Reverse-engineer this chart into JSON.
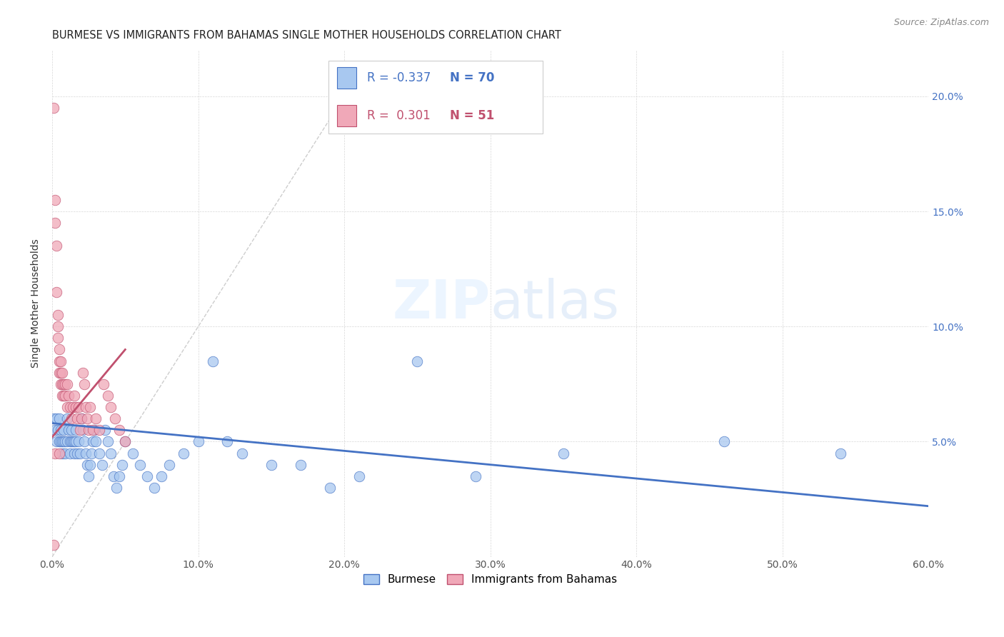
{
  "title": "BURMESE VS IMMIGRANTS FROM BAHAMAS SINGLE MOTHER HOUSEHOLDS CORRELATION CHART",
  "source": "Source: ZipAtlas.com",
  "ylabel": "Single Mother Households",
  "xlim": [
    0.0,
    0.6
  ],
  "ylim": [
    0.0,
    0.22
  ],
  "xticks": [
    0.0,
    0.1,
    0.2,
    0.3,
    0.4,
    0.5,
    0.6
  ],
  "xticklabels": [
    "0.0%",
    "10.0%",
    "20.0%",
    "30.0%",
    "40.0%",
    "50.0%",
    "60.0%"
  ],
  "yticks": [
    0.0,
    0.05,
    0.1,
    0.15,
    0.2
  ],
  "yticklabels_right": [
    "",
    "5.0%",
    "10.0%",
    "15.0%",
    "20.0%"
  ],
  "legend_R1": "-0.337",
  "legend_N1": "70",
  "legend_R2": "0.301",
  "legend_N2": "51",
  "color_blue": "#a8c8f0",
  "color_pink": "#f0a8b8",
  "color_blue_line": "#4472c4",
  "color_pink_line": "#c0506e",
  "color_diag": "#c8c8c8",
  "blue_points": [
    [
      0.001,
      0.06
    ],
    [
      0.002,
      0.055
    ],
    [
      0.003,
      0.05
    ],
    [
      0.003,
      0.06
    ],
    [
      0.004,
      0.055
    ],
    [
      0.005,
      0.05
    ],
    [
      0.005,
      0.06
    ],
    [
      0.006,
      0.05
    ],
    [
      0.006,
      0.055
    ],
    [
      0.007,
      0.05
    ],
    [
      0.007,
      0.045
    ],
    [
      0.008,
      0.05
    ],
    [
      0.008,
      0.055
    ],
    [
      0.009,
      0.05
    ],
    [
      0.009,
      0.045
    ],
    [
      0.01,
      0.06
    ],
    [
      0.01,
      0.05
    ],
    [
      0.011,
      0.055
    ],
    [
      0.012,
      0.05
    ],
    [
      0.012,
      0.045
    ],
    [
      0.013,
      0.05
    ],
    [
      0.013,
      0.055
    ],
    [
      0.014,
      0.05
    ],
    [
      0.015,
      0.045
    ],
    [
      0.015,
      0.05
    ],
    [
      0.016,
      0.05
    ],
    [
      0.016,
      0.055
    ],
    [
      0.017,
      0.045
    ],
    [
      0.018,
      0.05
    ],
    [
      0.019,
      0.045
    ],
    [
      0.02,
      0.06
    ],
    [
      0.021,
      0.055
    ],
    [
      0.022,
      0.05
    ],
    [
      0.023,
      0.045
    ],
    [
      0.024,
      0.04
    ],
    [
      0.025,
      0.035
    ],
    [
      0.026,
      0.04
    ],
    [
      0.027,
      0.045
    ],
    [
      0.028,
      0.05
    ],
    [
      0.029,
      0.055
    ],
    [
      0.03,
      0.05
    ],
    [
      0.032,
      0.045
    ],
    [
      0.034,
      0.04
    ],
    [
      0.036,
      0.055
    ],
    [
      0.038,
      0.05
    ],
    [
      0.04,
      0.045
    ],
    [
      0.042,
      0.035
    ],
    [
      0.044,
      0.03
    ],
    [
      0.046,
      0.035
    ],
    [
      0.048,
      0.04
    ],
    [
      0.05,
      0.05
    ],
    [
      0.055,
      0.045
    ],
    [
      0.06,
      0.04
    ],
    [
      0.065,
      0.035
    ],
    [
      0.07,
      0.03
    ],
    [
      0.075,
      0.035
    ],
    [
      0.08,
      0.04
    ],
    [
      0.09,
      0.045
    ],
    [
      0.1,
      0.05
    ],
    [
      0.11,
      0.085
    ],
    [
      0.12,
      0.05
    ],
    [
      0.13,
      0.045
    ],
    [
      0.15,
      0.04
    ],
    [
      0.17,
      0.04
    ],
    [
      0.19,
      0.03
    ],
    [
      0.21,
      0.035
    ],
    [
      0.25,
      0.085
    ],
    [
      0.29,
      0.035
    ],
    [
      0.35,
      0.045
    ],
    [
      0.46,
      0.05
    ],
    [
      0.54,
      0.045
    ]
  ],
  "pink_points": [
    [
      0.001,
      0.195
    ],
    [
      0.002,
      0.155
    ],
    [
      0.002,
      0.145
    ],
    [
      0.003,
      0.135
    ],
    [
      0.003,
      0.115
    ],
    [
      0.004,
      0.105
    ],
    [
      0.004,
      0.1
    ],
    [
      0.004,
      0.095
    ],
    [
      0.005,
      0.09
    ],
    [
      0.005,
      0.085
    ],
    [
      0.005,
      0.08
    ],
    [
      0.006,
      0.085
    ],
    [
      0.006,
      0.08
    ],
    [
      0.006,
      0.075
    ],
    [
      0.007,
      0.08
    ],
    [
      0.007,
      0.075
    ],
    [
      0.007,
      0.07
    ],
    [
      0.008,
      0.075
    ],
    [
      0.008,
      0.07
    ],
    [
      0.009,
      0.075
    ],
    [
      0.009,
      0.07
    ],
    [
      0.01,
      0.075
    ],
    [
      0.01,
      0.065
    ],
    [
      0.011,
      0.07
    ],
    [
      0.012,
      0.065
    ],
    [
      0.013,
      0.06
    ],
    [
      0.014,
      0.065
    ],
    [
      0.015,
      0.07
    ],
    [
      0.016,
      0.065
    ],
    [
      0.017,
      0.06
    ],
    [
      0.018,
      0.065
    ],
    [
      0.019,
      0.055
    ],
    [
      0.02,
      0.06
    ],
    [
      0.021,
      0.08
    ],
    [
      0.022,
      0.075
    ],
    [
      0.023,
      0.065
    ],
    [
      0.024,
      0.06
    ],
    [
      0.025,
      0.055
    ],
    [
      0.026,
      0.065
    ],
    [
      0.028,
      0.055
    ],
    [
      0.03,
      0.06
    ],
    [
      0.032,
      0.055
    ],
    [
      0.035,
      0.075
    ],
    [
      0.038,
      0.07
    ],
    [
      0.04,
      0.065
    ],
    [
      0.043,
      0.06
    ],
    [
      0.046,
      0.055
    ],
    [
      0.05,
      0.05
    ],
    [
      0.001,
      0.005
    ],
    [
      0.002,
      0.045
    ],
    [
      0.005,
      0.045
    ]
  ],
  "blue_line": [
    [
      0.0,
      0.058
    ],
    [
      0.6,
      0.022
    ]
  ],
  "pink_line": [
    [
      0.0,
      0.052
    ],
    [
      0.05,
      0.09
    ]
  ],
  "diag_line": [
    [
      0.0,
      0.0
    ],
    [
      0.2,
      0.2
    ]
  ]
}
